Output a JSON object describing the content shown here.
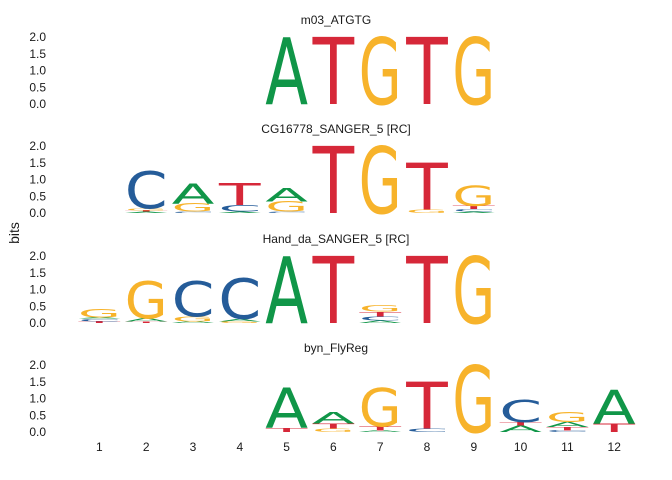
{
  "chart_data": {
    "type": "sequence_logo",
    "ylabel": "bits",
    "ylim": [
      0,
      2
    ],
    "yticks": [
      "2.0",
      "1.5",
      "1.0",
      "0.5",
      "0.0"
    ],
    "xticks": [
      "1",
      "2",
      "3",
      "4",
      "5",
      "6",
      "7",
      "8",
      "9",
      "10",
      "11",
      "12"
    ],
    "colors": {
      "A": "#109648",
      "C": "#255C99",
      "G": "#F7B32B",
      "T": "#D62839"
    },
    "panels": [
      {
        "title": "m03_ATGTG",
        "positions": [
          {
            "x": 5,
            "stack": [
              [
                "A",
                2.0
              ]
            ]
          },
          {
            "x": 6,
            "stack": [
              [
                "T",
                2.0
              ]
            ]
          },
          {
            "x": 7,
            "stack": [
              [
                "G",
                2.0
              ]
            ]
          },
          {
            "x": 8,
            "stack": [
              [
                "T",
                2.0
              ]
            ]
          },
          {
            "x": 9,
            "stack": [
              [
                "G",
                2.0
              ]
            ]
          }
        ]
      },
      {
        "title": "CG16778_SANGER_5 [RC]",
        "positions": [
          {
            "x": 2,
            "stack": [
              [
                "A",
                0.04
              ],
              [
                "T",
                0.04
              ],
              [
                "G",
                0.06
              ],
              [
                "C",
                1.1
              ]
            ]
          },
          {
            "x": 3,
            "stack": [
              [
                "C",
                0.04
              ],
              [
                "G",
                0.25
              ],
              [
                "A",
                0.6
              ]
            ]
          },
          {
            "x": 4,
            "stack": [
              [
                "A",
                0.04
              ],
              [
                "C",
                0.2
              ],
              [
                "T",
                0.65
              ]
            ]
          },
          {
            "x": 5,
            "stack": [
              [
                "C",
                0.04
              ],
              [
                "G",
                0.3
              ],
              [
                "A",
                0.4
              ]
            ]
          },
          {
            "x": 6,
            "stack": [
              [
                "T",
                2.0
              ]
            ]
          },
          {
            "x": 7,
            "stack": [
              [
                "G",
                2.0
              ]
            ]
          },
          {
            "x": 8,
            "stack": [
              [
                "G",
                0.1
              ],
              [
                "T",
                1.4
              ]
            ]
          },
          {
            "x": 9,
            "stack": [
              [
                "A",
                0.04
              ],
              [
                "C",
                0.08
              ],
              [
                "T",
                0.1
              ],
              [
                "G",
                0.6
              ]
            ]
          }
        ]
      },
      {
        "title": "Hand_da_SANGER_5 [RC]",
        "positions": [
          {
            "x": 1,
            "stack": [
              [
                "T",
                0.05
              ],
              [
                "C",
                0.08
              ],
              [
                "A",
                0.04
              ],
              [
                "G",
                0.25
              ]
            ]
          },
          {
            "x": 2,
            "stack": [
              [
                "T",
                0.04
              ],
              [
                "A",
                0.1
              ],
              [
                "G",
                1.1
              ]
            ]
          },
          {
            "x": 3,
            "stack": [
              [
                "A",
                0.05
              ],
              [
                "G",
                0.15
              ],
              [
                "C",
                1.05
              ]
            ]
          },
          {
            "x": 4,
            "stack": [
              [
                "G",
                0.05
              ],
              [
                "A",
                0.08
              ],
              [
                "C",
                1.2
              ]
            ]
          },
          {
            "x": 5,
            "stack": [
              [
                "A",
                2.0
              ]
            ]
          },
          {
            "x": 6,
            "stack": [
              [
                "T",
                2.0
              ]
            ]
          },
          {
            "x": 7,
            "stack": [
              [
                "A",
                0.08
              ],
              [
                "C",
                0.12
              ],
              [
                "T",
                0.14
              ],
              [
                "G",
                0.2
              ]
            ]
          },
          {
            "x": 8,
            "stack": [
              [
                "T",
                2.0
              ]
            ]
          },
          {
            "x": 9,
            "stack": [
              [
                "G",
                2.0
              ]
            ]
          }
        ]
      },
      {
        "title": "byn_FlyReg",
        "positions": [
          {
            "x": 5,
            "stack": [
              [
                "T",
                0.12
              ],
              [
                "A",
                1.2
              ]
            ]
          },
          {
            "x": 6,
            "stack": [
              [
                "G",
                0.1
              ],
              [
                "T",
                0.15
              ],
              [
                "A",
                0.35
              ]
            ]
          },
          {
            "x": 7,
            "stack": [
              [
                "A",
                0.05
              ],
              [
                "T",
                0.12
              ],
              [
                "G",
                1.15
              ]
            ]
          },
          {
            "x": 8,
            "stack": [
              [
                "C",
                0.1
              ],
              [
                "T",
                1.4
              ]
            ]
          },
          {
            "x": 9,
            "stack": [
              [
                "G",
                2.0
              ]
            ]
          },
          {
            "x": 10,
            "stack": [
              [
                "A",
                0.2
              ],
              [
                "T",
                0.1
              ],
              [
                "C",
                0.65
              ]
            ]
          },
          {
            "x": 11,
            "stack": [
              [
                "C",
                0.05
              ],
              [
                "T",
                0.1
              ],
              [
                "A",
                0.15
              ],
              [
                "G",
                0.28
              ]
            ]
          },
          {
            "x": 12,
            "stack": [
              [
                "T",
                0.25
              ],
              [
                "A",
                1.0
              ]
            ]
          }
        ]
      }
    ]
  }
}
